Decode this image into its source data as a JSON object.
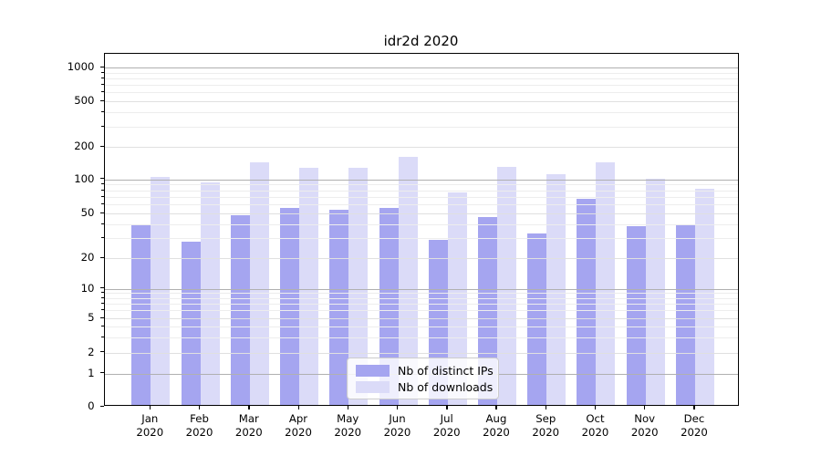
{
  "chart_data": {
    "type": "bar",
    "title": "idr2d 2020",
    "categories": [
      "Jan 2020",
      "Feb 2020",
      "Mar 2020",
      "Apr 2020",
      "May 2020",
      "Jun 2020",
      "Jul 2020",
      "Aug 2020",
      "Sep 2020",
      "Oct 2020",
      "Nov 2020",
      "Dec 2020"
    ],
    "series": [
      {
        "name": "Nb of distinct IPs",
        "color": "#a5a5f0",
        "values": [
          38,
          27,
          46,
          54,
          52,
          54,
          28,
          45,
          32,
          65,
          37,
          38
        ]
      },
      {
        "name": "Nb of downloads",
        "color": "#dbdbf8",
        "values": [
          101,
          91,
          138,
          123,
          122,
          155,
          74,
          124,
          108,
          138,
          98,
          79
        ]
      }
    ],
    "xlabel": "",
    "ylabel": "",
    "yscale": "symlog",
    "ylim": [
      0,
      1300
    ],
    "yticks": [
      0,
      1,
      2,
      5,
      10,
      20,
      50,
      100,
      200,
      500,
      1000
    ],
    "minor_yticks": [
      3,
      4,
      6,
      7,
      8,
      9,
      30,
      40,
      60,
      70,
      80,
      90,
      300,
      400,
      600,
      700,
      800,
      900
    ],
    "grid": true,
    "legend_position": "lower center"
  }
}
